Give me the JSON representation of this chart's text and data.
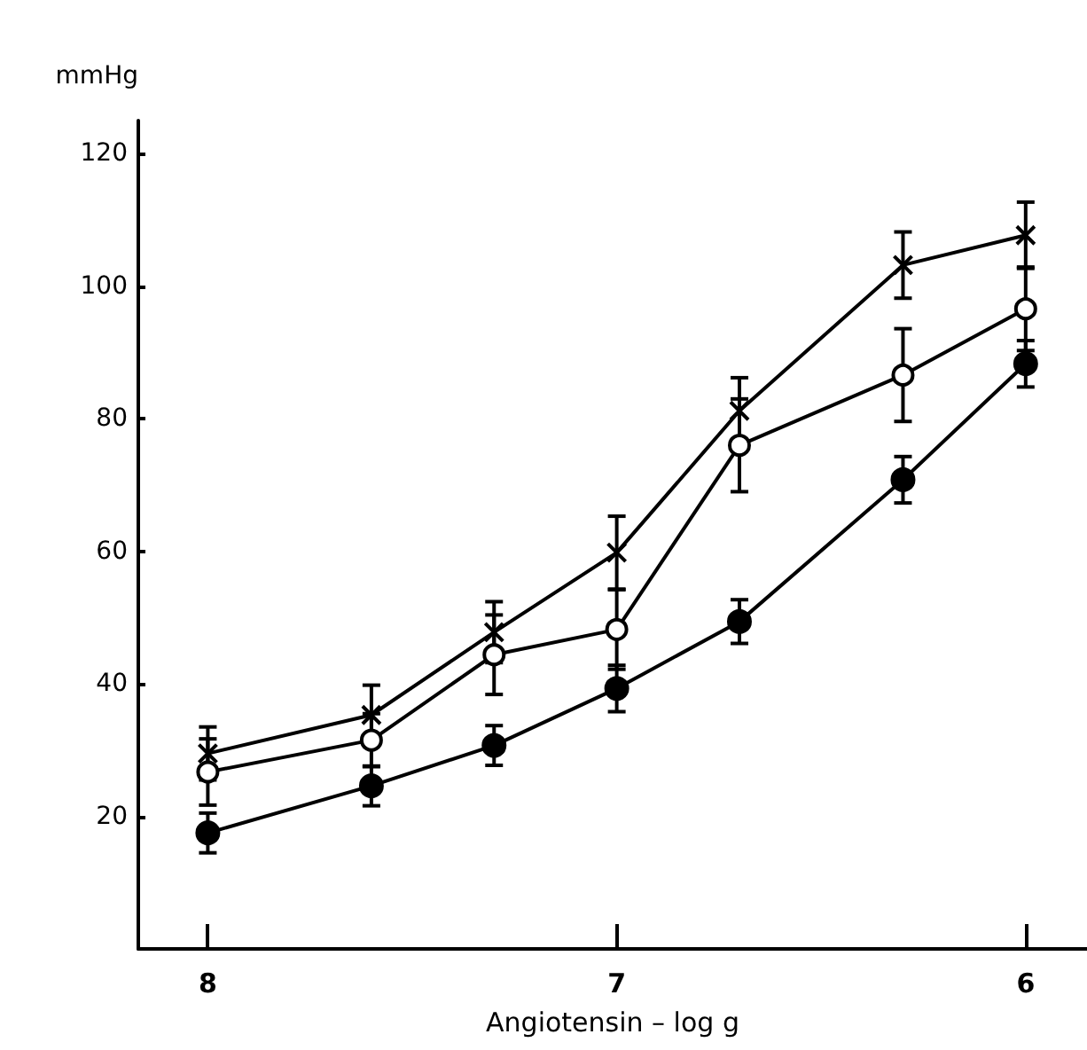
{
  "chart_data": {
    "type": "line",
    "xlabel": "Angiotensin – log g",
    "ylabel": "mmHg",
    "x": [
      8,
      7.6,
      7.3,
      7,
      6.7,
      6.3,
      6
    ],
    "xlim": [
      8.17,
      5.85
    ],
    "xticks": [
      8,
      7,
      6
    ],
    "ylim": [
      0,
      125
    ],
    "yticks": [
      20,
      40,
      60,
      80,
      100,
      120
    ],
    "grid": false,
    "line_style": "solid",
    "series": [
      {
        "color": "#000000",
        "marker": "cross",
        "values": [
          29.5,
          35.3,
          47.8,
          59.8,
          81.2,
          103.2,
          107.7
        ],
        "errors": [
          4,
          4.5,
          4.6,
          5.5,
          5,
          5,
          5
        ]
      },
      {
        "color": "#000000",
        "marker": "open circle",
        "values": [
          26.7,
          31.5,
          44.4,
          48.2,
          76,
          86.6,
          96.6
        ],
        "errors": [
          5,
          4,
          6,
          6,
          7,
          7,
          6.3
        ]
      },
      {
        "color": "#000000",
        "marker": "circle",
        "values": [
          17.5,
          24.6,
          30.7,
          39.3,
          49.4,
          70.8,
          88.3
        ],
        "errors": [
          3,
          3,
          3,
          3.5,
          3.3,
          3.5,
          3.5
        ]
      }
    ]
  }
}
